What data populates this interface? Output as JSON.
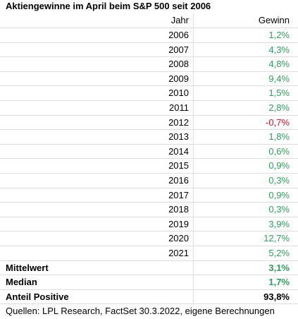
{
  "title": "Aktiengewinne im April beim S&P 500 seit 2006",
  "table": {
    "header": [
      "Jahr",
      "Gewinn"
    ],
    "rows": [
      [
        "2006",
        "1,2%"
      ],
      [
        "2007",
        "4,3%"
      ],
      [
        "2008",
        "4,8%"
      ],
      [
        "2009",
        "9,4%"
      ],
      [
        "2010",
        "1,5%"
      ],
      [
        "2011",
        "2,8%"
      ],
      [
        "2012",
        "-0,7%"
      ],
      [
        "2013",
        "1,8%"
      ],
      [
        "2014",
        "0,6%"
      ],
      [
        "2015",
        "0,9%"
      ],
      [
        "2016",
        "0,3%"
      ],
      [
        "2017",
        "0,9%"
      ],
      [
        "2018",
        "0,3%"
      ],
      [
        "2019",
        "3,9%"
      ],
      [
        "2020",
        "12,7%"
      ],
      [
        "2021",
        "5,2%"
      ]
    ]
  },
  "summary": [
    {
      "label": "Mittelwert",
      "value": "3,1%",
      "color": "#2e9e5b"
    },
    {
      "label": "Median",
      "value": "1,7%",
      "color": "#2e9e5b"
    },
    {
      "label": "Anteil Positive",
      "value": "93,8%",
      "color": "#000000"
    }
  ],
  "source": "Quellen: LPL Research, FactSet 30.3.2022, eigene Berechnungen"
}
